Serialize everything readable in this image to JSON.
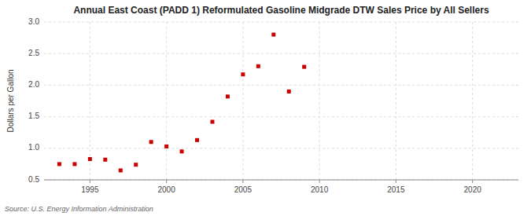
{
  "chart_data": {
    "type": "scatter",
    "title": "Annual East Coast (PADD 1) Reformulated Gasoline Midgrade DTW Sales Price by All Sellers",
    "ylabel": "Dollars per Gallon",
    "source": "Source: U.S. Energy Information Administration",
    "x": [
      1993,
      1994,
      1995,
      1996,
      1997,
      1998,
      1999,
      2000,
      2001,
      2002,
      2003,
      2004,
      2005,
      2006,
      2007,
      2008,
      2009
    ],
    "values": [
      0.75,
      0.75,
      0.83,
      0.82,
      0.65,
      0.74,
      1.1,
      1.03,
      0.95,
      1.13,
      1.42,
      1.82,
      2.17,
      2.3,
      2.8,
      1.9,
      2.29
    ],
    "color": "#cc0000",
    "marker": "square",
    "xlim": [
      1992,
      2023
    ],
    "ylim": [
      0.5,
      3.0
    ],
    "xticks": [
      1995,
      2000,
      2005,
      2010,
      2015,
      2020
    ],
    "yticks": [
      0.5,
      {
        "value": 1.0,
        "label": "1.0"
      },
      1.5,
      {
        "value": 2.0,
        "label": "2.0"
      },
      2.5,
      {
        "value": 3.0,
        "label": "3.0"
      }
    ],
    "grid": true
  }
}
